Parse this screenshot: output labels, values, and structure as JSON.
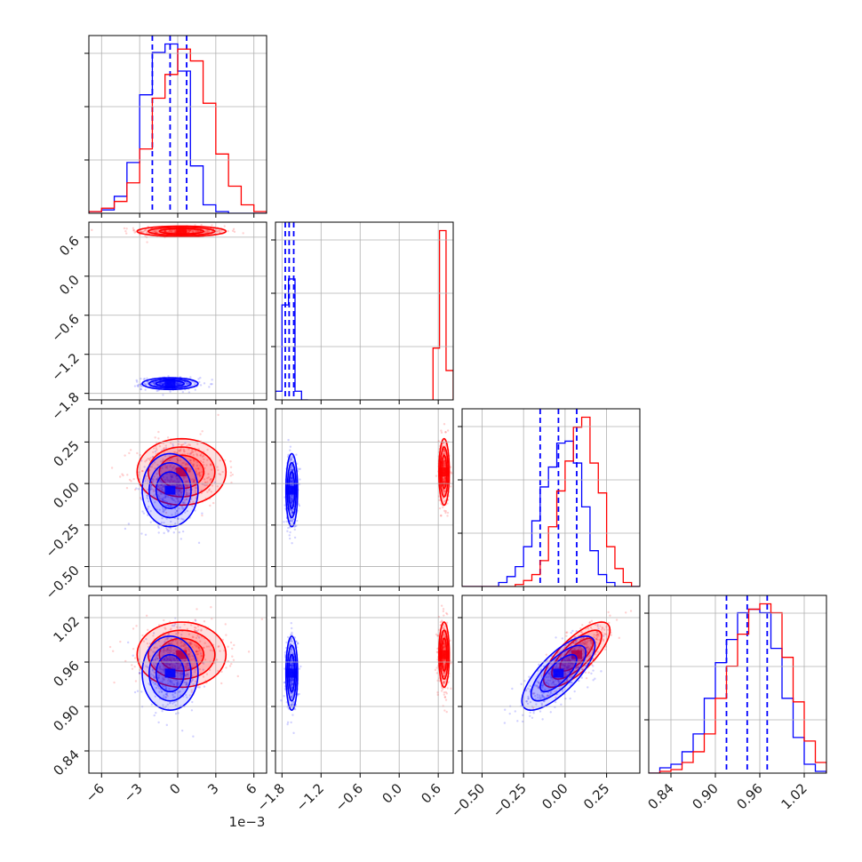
{
  "chart_data": {
    "type": "corner",
    "series": [
      {
        "color": "#0000ff"
      },
      {
        "color": "#ff0000"
      }
    ],
    "axis_offset_labels": [
      "1e−3"
    ],
    "params": [
      {
        "id": "p0",
        "range": [
          -7.0,
          7.0
        ],
        "ticks": [
          -6,
          -3,
          0,
          3,
          6
        ],
        "tick_labels": [
          "−6",
          "−3",
          "0",
          "3",
          "6"
        ]
      },
      {
        "id": "p1",
        "range": [
          -1.9,
          0.83
        ],
        "ticks": [
          -1.8,
          -1.2,
          -0.6,
          0.0,
          0.6
        ],
        "tick_labels": [
          "−1.8",
          "−1.2",
          "−0.6",
          "0.0",
          "0.6"
        ]
      },
      {
        "id": "p2",
        "range": [
          -0.62,
          0.45
        ],
        "ticks": [
          -0.5,
          -0.25,
          0.0,
          0.25
        ],
        "tick_labels": [
          "−0.50",
          "−0.25",
          "0.00",
          "0.25"
        ]
      },
      {
        "id": "p3",
        "range": [
          0.81,
          1.05
        ],
        "ticks": [
          0.84,
          0.9,
          0.96,
          1.02
        ],
        "tick_labels": [
          "0.84",
          "0.90",
          "0.96",
          "1.02"
        ]
      }
    ],
    "diagonal": [
      {
        "param": 0,
        "series": [
          {
            "color": "#0000ff",
            "bins": [
              -7,
              -6,
              -5,
              -4,
              -3,
              -2,
              -1,
              0,
              1,
              2,
              3,
              4,
              5,
              6,
              7
            ],
            "counts": [
              0.01,
              0.02,
              0.1,
              0.3,
              0.7,
              0.95,
              1.0,
              0.84,
              0.28,
              0.05,
              0.01,
              0,
              0,
              0
            ],
            "quantiles": [
              -2.0,
              -0.6,
              0.7
            ]
          },
          {
            "color": "#ff0000",
            "bins": [
              -7,
              -6,
              -5,
              -4,
              -3,
              -2,
              -1,
              0,
              1,
              2,
              3,
              4,
              5,
              6,
              7
            ],
            "counts": [
              0.01,
              0.03,
              0.07,
              0.18,
              0.38,
              0.68,
              0.82,
              0.97,
              0.9,
              0.65,
              0.35,
              0.16,
              0.05,
              0.01
            ],
            "quantiles": []
          }
        ]
      },
      {
        "param": 1,
        "series": [
          {
            "color": "#0000ff",
            "bins": [
              -1.9,
              -1.8,
              -1.7,
              -1.6,
              -1.5,
              -1.4
            ],
            "counts": [
              0.05,
              0.55,
              0.7,
              0.05,
              0
            ],
            "quantiles": [
              -1.75,
              -1.69,
              -1.62
            ]
          },
          {
            "color": "#ff0000",
            "bins": [
              0.52,
              0.62,
              0.72,
              0.83
            ],
            "counts": [
              0.3,
              0.98,
              0.17
            ],
            "quantiles": []
          }
        ]
      },
      {
        "param": 2,
        "series": [
          {
            "color": "#0000ff",
            "bins": [
              -0.62,
              -0.55,
              -0.5,
              -0.45,
              -0.4,
              -0.35,
              -0.3,
              -0.25,
              -0.2,
              -0.15,
              -0.1,
              -0.05,
              0.0,
              0.05,
              0.1,
              0.15,
              0.2,
              0.25,
              0.3,
              0.35,
              0.4,
              0.45
            ],
            "counts": [
              0,
              0,
              0,
              0,
              0.02,
              0.05,
              0.1,
              0.2,
              0.33,
              0.5,
              0.6,
              0.72,
              0.73,
              0.62,
              0.4,
              0.18,
              0.06,
              0.02,
              0,
              0,
              0
            ],
            "quantiles": [
              -0.15,
              -0.04,
              0.07
            ]
          },
          {
            "color": "#ff0000",
            "bins": [
              -0.62,
              -0.55,
              -0.5,
              -0.45,
              -0.4,
              -0.35,
              -0.3,
              -0.25,
              -0.2,
              -0.15,
              -0.1,
              -0.05,
              0.0,
              0.05,
              0.1,
              0.15,
              0.2,
              0.25,
              0.3,
              0.35,
              0.4,
              0.45
            ],
            "counts": [
              0,
              0,
              0,
              0,
              0,
              0,
              0.01,
              0.03,
              0.06,
              0.13,
              0.3,
              0.48,
              0.63,
              0.8,
              0.85,
              0.62,
              0.47,
              0.2,
              0.09,
              0.02,
              0
            ],
            "quantiles": []
          }
        ]
      },
      {
        "param": 3,
        "series": [
          {
            "color": "#0000ff",
            "bins": [
              0.81,
              0.825,
              0.84,
              0.855,
              0.87,
              0.885,
              0.9,
              0.915,
              0.93,
              0.945,
              0.96,
              0.975,
              0.99,
              1.005,
              1.02,
              1.035,
              1.05
            ],
            "counts": [
              0,
              0.03,
              0.05,
              0.12,
              0.22,
              0.42,
              0.62,
              0.75,
              0.9,
              0.92,
              0.9,
              0.7,
              0.42,
              0.2,
              0.05,
              0.01
            ],
            "quantiles": [
              0.915,
              0.943,
              0.97
            ]
          },
          {
            "color": "#ff0000",
            "bins": [
              0.81,
              0.825,
              0.84,
              0.855,
              0.87,
              0.885,
              0.9,
              0.915,
              0.93,
              0.945,
              0.96,
              0.975,
              0.99,
              1.005,
              1.02,
              1.035,
              1.05
            ],
            "counts": [
              0,
              0.01,
              0.02,
              0.06,
              0.12,
              0.22,
              0.42,
              0.6,
              0.78,
              0.92,
              0.95,
              0.9,
              0.65,
              0.4,
              0.18,
              0.06
            ],
            "quantiles": []
          }
        ]
      }
    ],
    "pairs": [
      {
        "x": 0,
        "y": 1,
        "series": [
          {
            "color": "#0000ff",
            "mean": [
              -0.6,
              -1.65
            ],
            "sd": [
              1.1,
              0.045
            ],
            "rho": 0.0
          },
          {
            "color": "#ff0000",
            "mean": [
              0.3,
              0.69
            ],
            "sd": [
              1.75,
              0.04
            ],
            "rho": 0.0
          }
        ]
      },
      {
        "x": 0,
        "y": 2,
        "series": [
          {
            "color": "#0000ff",
            "mean": [
              -0.6,
              -0.04
            ],
            "sd": [
              1.1,
              0.11
            ],
            "rho": 0.0
          },
          {
            "color": "#ff0000",
            "mean": [
              0.3,
              0.07
            ],
            "sd": [
              1.75,
              0.1
            ],
            "rho": 0.0
          }
        ]
      },
      {
        "x": 0,
        "y": 3,
        "series": [
          {
            "color": "#0000ff",
            "mean": [
              -0.6,
              0.945
            ],
            "sd": [
              1.1,
              0.025
            ],
            "rho": 0.0
          },
          {
            "color": "#ff0000",
            "mean": [
              0.3,
              0.97
            ],
            "sd": [
              1.75,
              0.022
            ],
            "rho": 0.0
          }
        ]
      },
      {
        "x": 1,
        "y": 2,
        "series": [
          {
            "color": "#0000ff",
            "mean": [
              -1.65,
              -0.04
            ],
            "sd": [
              0.045,
              0.11
            ],
            "rho": 0.0
          },
          {
            "color": "#ff0000",
            "mean": [
              0.69,
              0.07
            ],
            "sd": [
              0.04,
              0.1
            ],
            "rho": 0.0
          }
        ]
      },
      {
        "x": 1,
        "y": 3,
        "series": [
          {
            "color": "#0000ff",
            "mean": [
              -1.65,
              0.945
            ],
            "sd": [
              0.045,
              0.025
            ],
            "rho": 0.0
          },
          {
            "color": "#ff0000",
            "mean": [
              0.69,
              0.97
            ],
            "sd": [
              0.04,
              0.022
            ],
            "rho": 0.0
          }
        ]
      },
      {
        "x": 2,
        "y": 3,
        "series": [
          {
            "color": "#0000ff",
            "mean": [
              -0.04,
              0.945
            ],
            "sd": [
              0.11,
              0.025
            ],
            "rho": 0.75
          },
          {
            "color": "#ff0000",
            "mean": [
              0.07,
              0.97
            ],
            "sd": [
              0.1,
              0.022
            ],
            "rho": 0.75
          }
        ]
      }
    ],
    "grid": true,
    "contour_levels_sigma": [
      1,
      1.5,
      2
    ]
  }
}
